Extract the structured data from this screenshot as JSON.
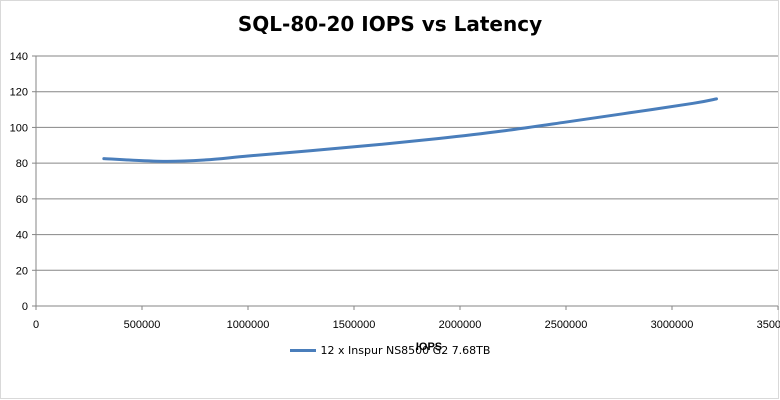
{
  "chart_data": {
    "type": "line",
    "title": "SQL-80-20 IOPS vs Latency",
    "xlabel": "IOPS",
    "ylabel": "",
    "xlim": [
      0,
      3500000
    ],
    "ylim": [
      0,
      140
    ],
    "x_ticks": [
      "0",
      "500000",
      "1000000",
      "1500000",
      "2000000",
      "2500000",
      "3000000",
      "3500000"
    ],
    "y_ticks": [
      "0",
      "20",
      "40",
      "60",
      "80",
      "100",
      "120",
      "140"
    ],
    "grid": "horizontal",
    "legend_position": "bottom",
    "series": [
      {
        "name": "12 x Inspur NS8500 G2 7.68TB",
        "color": "#4a7ebb",
        "x": [
          320000,
          600000,
          800000,
          1000000,
          1300000,
          1600000,
          1900000,
          2200000,
          2500000,
          2800000,
          3100000,
          3210000
        ],
        "y": [
          82.5,
          81,
          81.8,
          84,
          87,
          90.2,
          93.8,
          98,
          103,
          108.2,
          113.5,
          116
        ]
      }
    ]
  }
}
